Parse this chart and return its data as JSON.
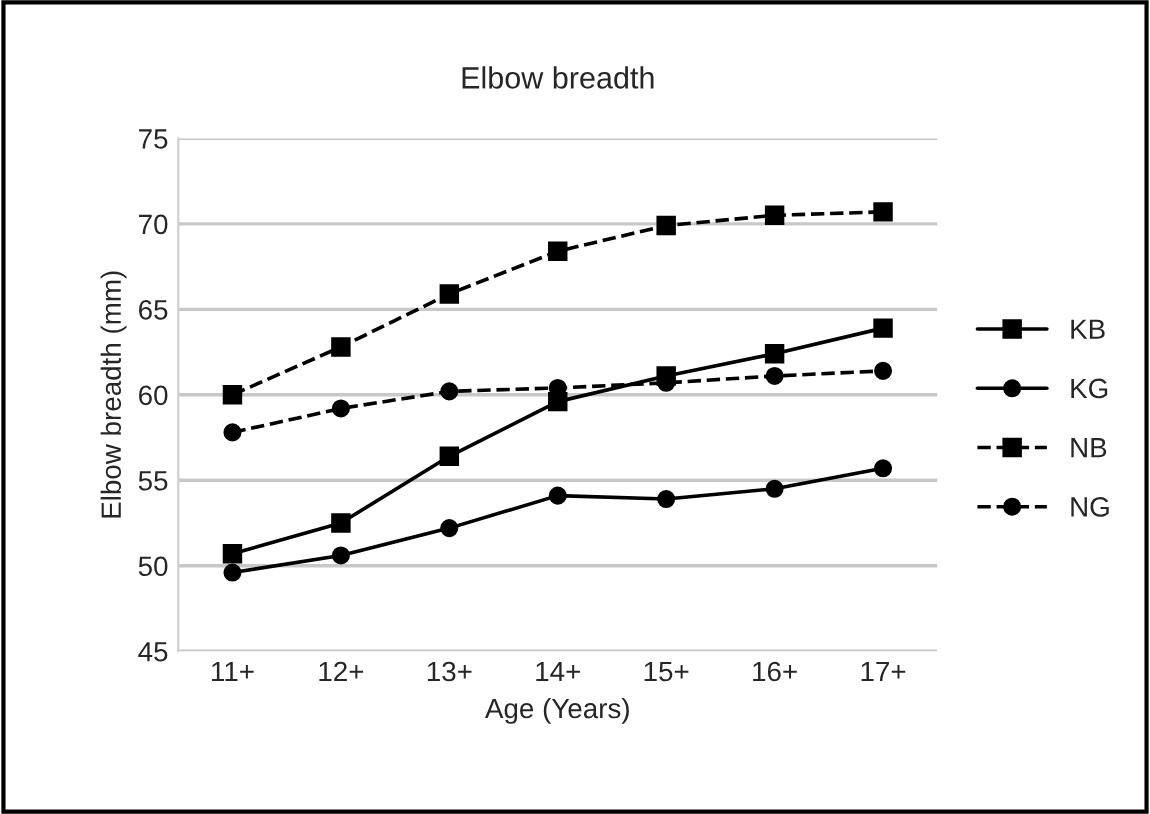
{
  "chart_data": {
    "type": "line",
    "title": "Elbow breadth",
    "xlabel": "Age (Years)",
    "ylabel": "Elbow breadth (mm)",
    "categories": [
      "11+",
      "12+",
      "13+",
      "14+",
      "15+",
      "16+",
      "17+"
    ],
    "series": [
      {
        "name": "KB",
        "color": "#000000",
        "marker": "square",
        "line_style": "solid",
        "values": [
          50.7,
          52.5,
          56.4,
          59.6,
          61.1,
          62.4,
          63.9
        ]
      },
      {
        "name": "KG",
        "color": "#000000",
        "marker": "circle",
        "line_style": "solid",
        "values": [
          49.6,
          50.6,
          52.2,
          54.1,
          53.9,
          54.5,
          55.7
        ]
      },
      {
        "name": "NB",
        "color": "#000000",
        "marker": "square",
        "line_style": "dashed",
        "values": [
          60.0,
          62.8,
          65.9,
          68.4,
          69.9,
          70.5,
          70.7
        ]
      },
      {
        "name": "NG",
        "color": "#000000",
        "marker": "circle",
        "line_style": "dashed",
        "values": [
          57.8,
          59.2,
          60.2,
          60.4,
          60.7,
          61.1,
          61.4
        ]
      }
    ],
    "ylim": [
      45,
      75
    ],
    "yticks": [
      45,
      50,
      55,
      60,
      65,
      70,
      75
    ],
    "grid": "y",
    "legend": "right"
  }
}
